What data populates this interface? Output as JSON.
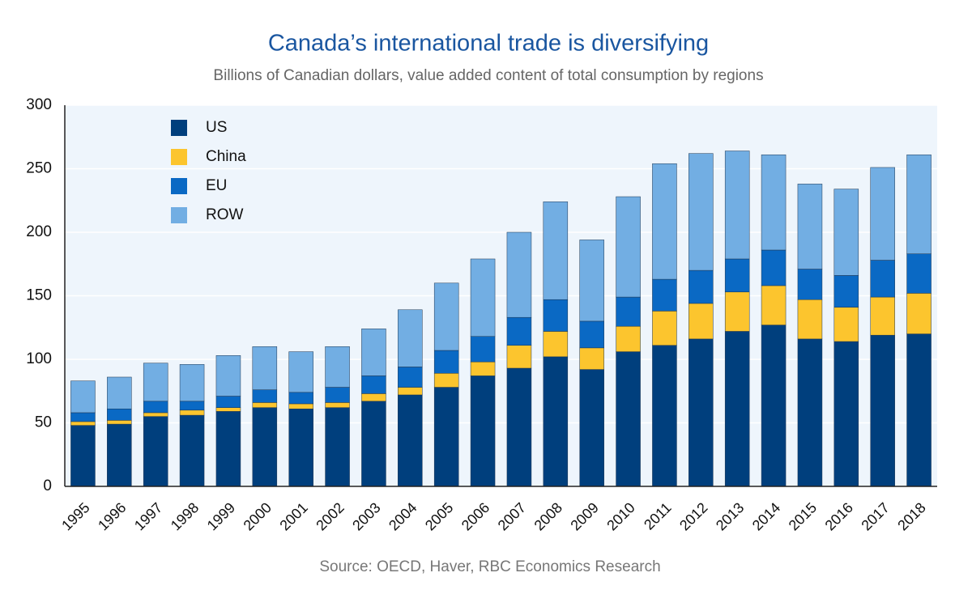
{
  "chart_data": {
    "type": "stacked-bar",
    "title": "Canada’s international trade is diversifying",
    "subtitle": "Billions of Canadian dollars, value added content of total consumption by regions",
    "source": "Source: OECD, Haver, RBC Economics Research",
    "categories": [
      "1995",
      "1996",
      "1997",
      "1998",
      "1999",
      "2000",
      "2001",
      "2002",
      "2003",
      "2004",
      "2005",
      "2006",
      "2007",
      "2008",
      "2009",
      "2010",
      "2011",
      "2012",
      "2013",
      "2014",
      "2015",
      "2016",
      "2017",
      "2018"
    ],
    "series": [
      {
        "name": "US",
        "color": "#003f7d",
        "values": [
          48,
          49,
          55,
          56,
          59,
          62,
          61,
          62,
          67,
          72,
          78,
          87,
          93,
          102,
          92,
          106,
          111,
          116,
          122,
          127,
          116,
          114,
          119,
          120
        ]
      },
      {
        "name": "China",
        "color": "#fcc52e",
        "values": [
          3,
          3,
          3,
          4,
          3,
          4,
          4,
          4,
          6,
          6,
          11,
          11,
          18,
          20,
          17,
          20,
          27,
          28,
          31,
          31,
          31,
          27,
          30,
          32
        ]
      },
      {
        "name": "EU",
        "color": "#0a69c4",
        "values": [
          7,
          9,
          9,
          7,
          9,
          10,
          9,
          12,
          14,
          16,
          18,
          20,
          22,
          25,
          21,
          23,
          25,
          26,
          26,
          28,
          24,
          25,
          29,
          31
        ]
      },
      {
        "name": "ROW",
        "color": "#72aee3",
        "values": [
          25,
          25,
          30,
          29,
          32,
          34,
          32,
          32,
          37,
          45,
          53,
          61,
          67,
          77,
          64,
          79,
          91,
          92,
          85,
          75,
          67,
          68,
          73,
          78
        ]
      }
    ],
    "ylim": [
      0,
      300
    ],
    "yticks": [
      0,
      50,
      100,
      150,
      200,
      250,
      300
    ],
    "grid": true,
    "legend": "top-left"
  }
}
